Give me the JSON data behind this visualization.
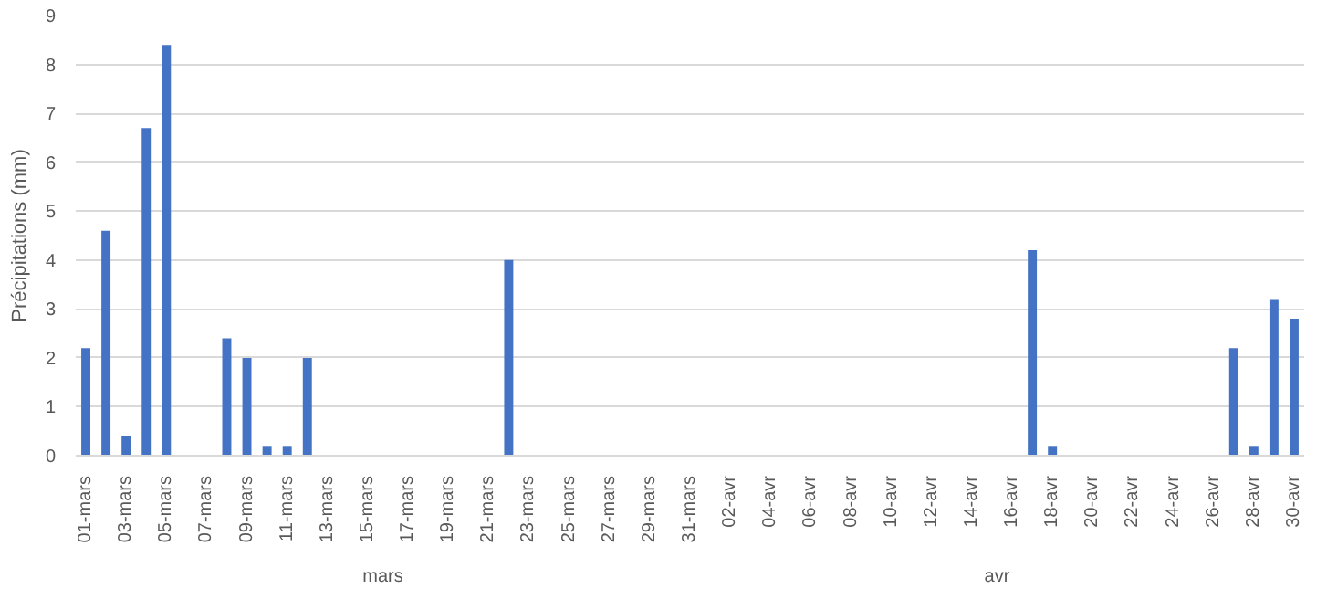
{
  "chart_data": {
    "type": "bar",
    "ylabel": "Précipitations (mm)",
    "categories": [
      "01-mars",
      null,
      "03-mars",
      null,
      "05-mars",
      null,
      "07-mars",
      null,
      "09-mars",
      null,
      "11-mars",
      null,
      "13-mars",
      null,
      "15-mars",
      null,
      "17-mars",
      null,
      "19-mars",
      null,
      "21-mars",
      null,
      "23-mars",
      null,
      "25-mars",
      null,
      "27-mars",
      null,
      "29-mars",
      null,
      "31-mars",
      null,
      "02-avr",
      null,
      "04-avr",
      null,
      "06-avr",
      null,
      "08-avr",
      null,
      "10-avr",
      null,
      "12-avr",
      null,
      "14-avr",
      null,
      "16-avr",
      null,
      "18-avr",
      null,
      "20-avr",
      null,
      "22-avr",
      null,
      "24-avr",
      null,
      "26-avr",
      null,
      "28-avr",
      null,
      "30-avr"
    ],
    "values": [
      2.2,
      4.6,
      0.4,
      6.7,
      8.4,
      0,
      0,
      2.4,
      2.0,
      0.2,
      0.2,
      2.0,
      0,
      0,
      0,
      0,
      0,
      0,
      0,
      0,
      0,
      4.0,
      0,
      0,
      0,
      0,
      0,
      0,
      0,
      0,
      0,
      0,
      0,
      0,
      0,
      0,
      0,
      0,
      0,
      0,
      0,
      0,
      0,
      0,
      0,
      0,
      0,
      4.2,
      0.2,
      0,
      0,
      0,
      0,
      0,
      0,
      0,
      0,
      2.2,
      0.2,
      3.2,
      2.8
    ],
    "color": "#4472c4",
    "ylim": [
      0,
      9
    ],
    "yticks": [
      0,
      1,
      2,
      3,
      4,
      5,
      6,
      7,
      8,
      9
    ],
    "grid": "y",
    "annotations": [
      "mars",
      "avr"
    ]
  }
}
